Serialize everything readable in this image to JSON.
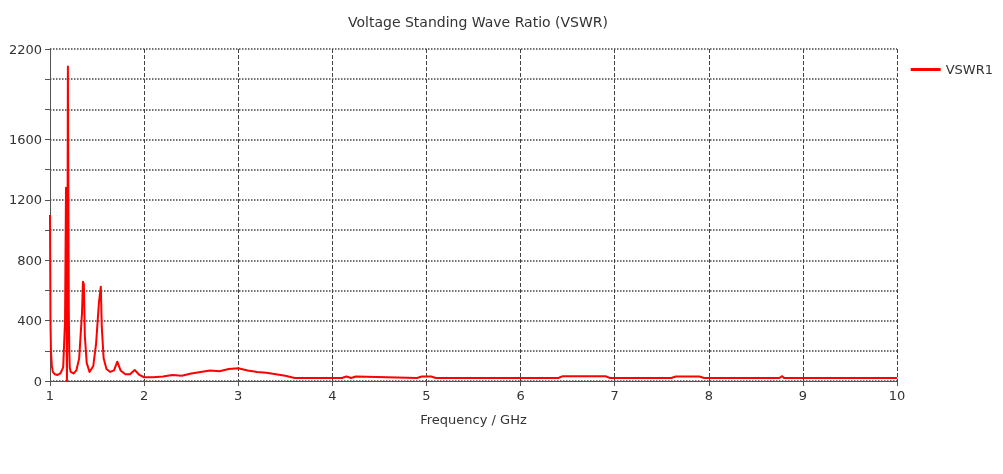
{
  "chart_data": {
    "type": "line",
    "title": "Voltage Standing Wave Ratio (VSWR)",
    "xlabel": "Frequency / GHz",
    "xlim": [
      1,
      10
    ],
    "xticks": [
      1,
      2,
      3,
      4,
      5,
      6,
      7,
      8,
      9,
      10
    ],
    "ylim": [
      0,
      2200
    ],
    "yticks": [
      0,
      {
        "value": 200,
        "label": null
      },
      400,
      {
        "value": 600,
        "label": null
      },
      800,
      {
        "value": 1000,
        "label": null
      },
      1200,
      {
        "value": 1400,
        "label": null
      },
      1600,
      {
        "value": 1800,
        "label": null
      },
      {
        "value": 2000,
        "label": null
      },
      2200
    ],
    "grid": true,
    "legend": "top right",
    "marker": "none",
    "line_style": "solid",
    "series": [
      {
        "name": "VSWR1",
        "color": "#ff0000",
        "x": [
          1.0,
          1.005,
          1.01,
          1.02,
          1.03,
          1.05,
          1.08,
          1.11,
          1.14,
          1.16,
          1.17,
          1.175,
          1.18,
          1.185,
          1.19,
          1.195,
          1.2,
          1.205,
          1.21,
          1.22,
          1.25,
          1.28,
          1.31,
          1.34,
          1.35,
          1.36,
          1.37,
          1.39,
          1.42,
          1.46,
          1.49,
          1.52,
          1.54,
          1.55,
          1.57,
          1.6,
          1.64,
          1.68,
          1.715,
          1.75,
          1.8,
          1.85,
          1.9,
          1.95,
          2.0,
          2.1,
          2.2,
          2.3,
          2.4,
          2.5,
          2.6,
          2.7,
          2.8,
          2.9,
          3.0,
          3.1,
          3.2,
          3.3,
          3.4,
          3.5,
          3.6,
          3.7,
          4.1,
          4.15,
          4.2,
          4.25,
          4.9,
          4.95,
          5.05,
          5.1,
          6.4,
          6.45,
          6.9,
          6.95,
          7.6,
          7.65,
          7.9,
          7.95,
          8.75,
          8.78,
          8.8,
          10.0
        ],
        "values": [
          1100,
          400,
          200,
          100,
          60,
          45,
          40,
          50,
          90,
          400,
          1280,
          1280,
          0,
          600,
          2084,
          2084,
          450,
          200,
          90,
          60,
          50,
          70,
          150,
          450,
          658,
          640,
          300,
          120,
          60,
          100,
          250,
          520,
          625,
          360,
          150,
          80,
          60,
          70,
          128,
          70,
          45,
          45,
          73,
          40,
          25,
          25,
          30,
          40,
          35,
          50,
          60,
          70,
          65,
          80,
          85,
          70,
          60,
          55,
          45,
          35,
          20,
          20,
          20,
          30,
          20,
          30,
          20,
          30,
          30,
          20,
          20,
          32,
          32,
          20,
          20,
          30,
          30,
          20,
          20,
          32,
          20,
          20
        ]
      }
    ]
  }
}
